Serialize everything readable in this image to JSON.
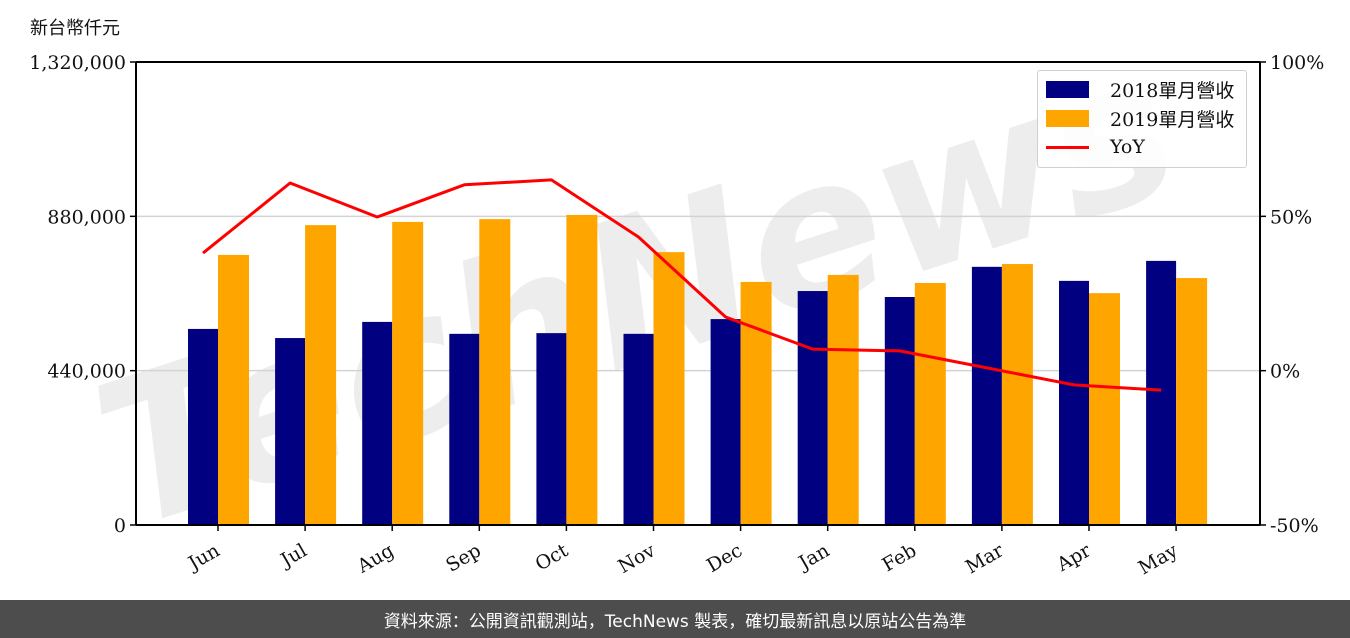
{
  "unit_label": "新台幣仟元",
  "footer_text": "資料來源：公開資訊觀測站，TechNews 製表，確切最新訊息以原站公告為準",
  "watermark_text": "TechNews",
  "legend": {
    "items": [
      {
        "label": "2018單月營收",
        "color": "#000080",
        "kind": "bar"
      },
      {
        "label": "2019單月營收",
        "color": "#FFA500",
        "kind": "bar"
      },
      {
        "label": "YoY",
        "color": "#FF0000",
        "kind": "line"
      }
    ]
  },
  "chart_data": {
    "type": "bar",
    "title": "",
    "xlabel": "",
    "ylabel": "新台幣仟元",
    "categories": [
      "Jun",
      "Jul",
      "Aug",
      "Sep",
      "Oct",
      "Nov",
      "Dec",
      "Jan",
      "Feb",
      "Mar",
      "Apr",
      "May"
    ],
    "series": [
      {
        "name": "2018單月營收",
        "type": "bar",
        "axis": "left",
        "color": "#000080",
        "values": [
          559000,
          533000,
          579000,
          545000,
          547000,
          545000,
          587000,
          667000,
          650000,
          736000,
          696000,
          753000
        ]
      },
      {
        "name": "2019單月營收",
        "type": "bar",
        "axis": "left",
        "color": "#FFA500",
        "values": [
          770000,
          855000,
          864000,
          872000,
          884000,
          778000,
          693000,
          713000,
          690000,
          744000,
          661000,
          704000
        ]
      },
      {
        "name": "YoY",
        "type": "line",
        "axis": "right",
        "color": "#FF0000",
        "values": [
          38.1,
          60.8,
          49.8,
          60.2,
          61.8,
          43.3,
          17.4,
          7.0,
          6.4,
          0.9,
          -4.6,
          -6.3
        ]
      }
    ],
    "ylim": [
      0,
      1320000
    ],
    "yticks": [
      0,
      440000,
      880000,
      1320000
    ],
    "ytick_labels": [
      "0",
      "440,000",
      "880,000",
      "1,320,000"
    ],
    "y2lim": [
      -50,
      100
    ],
    "y2ticks": [
      -50,
      0,
      50,
      100
    ],
    "y2tick_labels": [
      "-50%",
      "0%",
      "50%",
      "100%"
    ],
    "grid": "horizontal",
    "legend_position": "upper right"
  }
}
